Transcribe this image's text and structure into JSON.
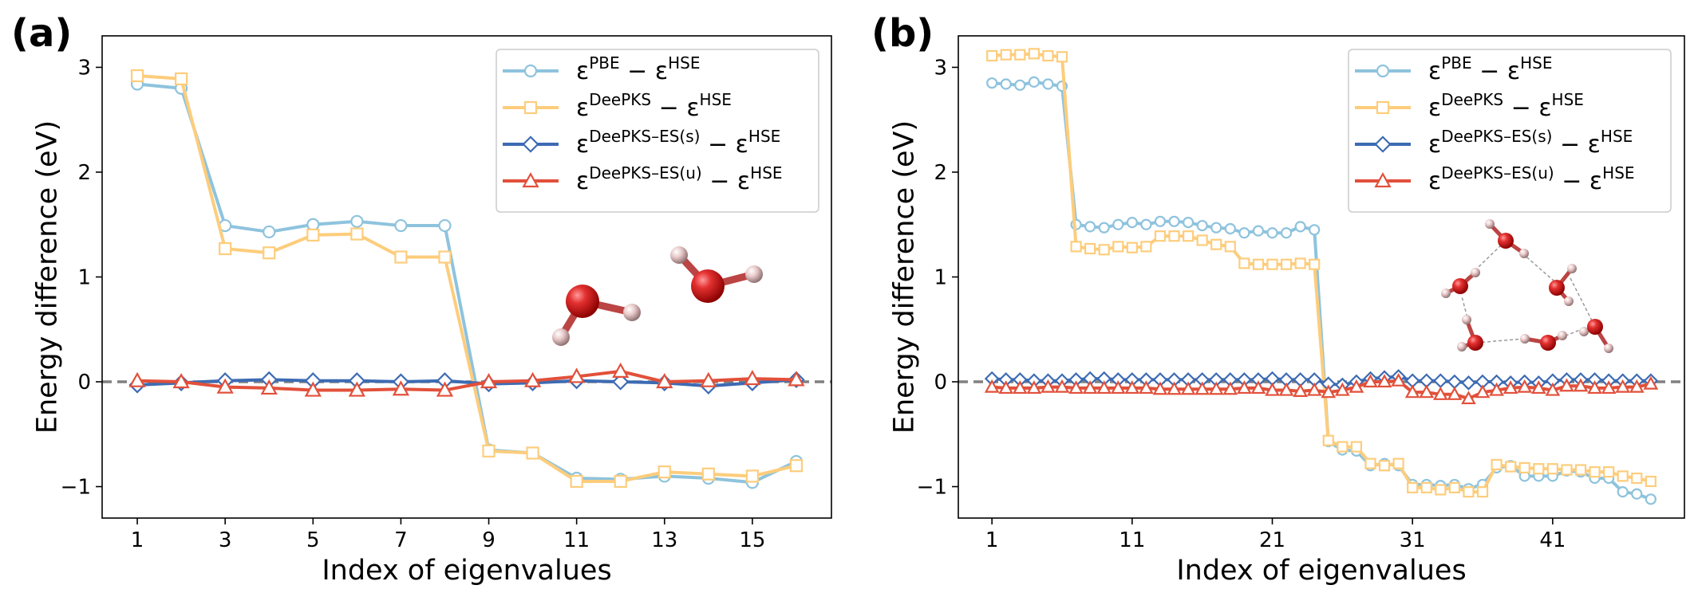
{
  "figure": {
    "panels": [
      {
        "label": "(a)"
      },
      {
        "label": "(b)"
      }
    ]
  },
  "colors": {
    "pbe": "#8ec3dd",
    "deepks": "#fdcd7c",
    "es_s": "#3d6bb3",
    "es_u": "#e2503a",
    "zero": "#808080"
  },
  "chart_data": [
    {
      "type": "line",
      "panel_label": "(a)",
      "xlabel": "Index of eigenvalues",
      "ylabel": "Energy difference (eV)",
      "xlim": [
        0.2,
        16.8
      ],
      "ylim": [
        -1.3,
        3.3
      ],
      "xticks": [
        1,
        3,
        5,
        7,
        9,
        11,
        13,
        15
      ],
      "yticks": [
        -1,
        0,
        1,
        2,
        3
      ],
      "ytick_labels": [
        "−1",
        "0",
        "1",
        "2",
        "3"
      ],
      "x": [
        1,
        2,
        3,
        4,
        5,
        6,
        7,
        8,
        9,
        10,
        11,
        12,
        13,
        14,
        15,
        16
      ],
      "series": [
        {
          "name": "PBE",
          "marker": "circle",
          "legend": {
            "base": "ε",
            "sup": "PBE",
            "rest": " − ε",
            "sup2": "HSE"
          },
          "values": [
            2.84,
            2.8,
            1.49,
            1.43,
            1.5,
            1.53,
            1.49,
            1.49,
            -0.65,
            -0.68,
            -0.92,
            -0.93,
            -0.9,
            -0.92,
            -0.96,
            -0.76
          ]
        },
        {
          "name": "DeePKS",
          "marker": "square",
          "legend": {
            "base": "ε",
            "sup": "DeePKS",
            "rest": " − ε",
            "sup2": "HSE"
          },
          "values": [
            2.92,
            2.89,
            1.27,
            1.23,
            1.4,
            1.41,
            1.19,
            1.19,
            -0.66,
            -0.68,
            -0.95,
            -0.95,
            -0.86,
            -0.88,
            -0.9,
            -0.8
          ]
        },
        {
          "name": "DeePKS-ES(s)",
          "marker": "diamond",
          "legend": {
            "base": "ε",
            "sup": "DeePKS–ES(s)",
            "rest": " − ε",
            "sup2": "HSE"
          },
          "values": [
            -0.03,
            -0.01,
            0.01,
            0.02,
            0.01,
            0.01,
            0.0,
            0.01,
            -0.02,
            -0.01,
            0.01,
            0.0,
            -0.01,
            -0.04,
            -0.01,
            0.02
          ]
        },
        {
          "name": "DeePKS-ES(u)",
          "marker": "triangle",
          "legend": {
            "base": "ε",
            "sup": "DeePKS–ES(u)",
            "rest": " − ε",
            "sup2": "HSE"
          },
          "values": [
            0.01,
            0.0,
            -0.05,
            -0.06,
            -0.08,
            -0.08,
            -0.07,
            -0.08,
            0.0,
            0.01,
            0.05,
            0.1,
            0.0,
            0.01,
            0.03,
            0.02
          ]
        }
      ]
    },
    {
      "type": "line",
      "panel_label": "(b)",
      "xlabel": "Index of eigenvalues",
      "ylabel": "Energy difference (eV)",
      "xlim": [
        -1.4,
        50.4
      ],
      "ylim": [
        -1.3,
        3.3
      ],
      "xticks": [
        1,
        11,
        21,
        31,
        41
      ],
      "yticks": [
        -1,
        0,
        1,
        2,
        3
      ],
      "ytick_labels": [
        "−1",
        "0",
        "1",
        "2",
        "3"
      ],
      "x": [
        1,
        2,
        3,
        4,
        5,
        6,
        7,
        8,
        9,
        10,
        11,
        12,
        13,
        14,
        15,
        16,
        17,
        18,
        19,
        20,
        21,
        22,
        23,
        24,
        25,
        26,
        27,
        28,
        29,
        30,
        31,
        32,
        33,
        34,
        35,
        36,
        37,
        38,
        39,
        40,
        41,
        42,
        43,
        44,
        45,
        46,
        47,
        48
      ],
      "series": [
        {
          "name": "PBE",
          "marker": "circle",
          "legend": {
            "base": "ε",
            "sup": "PBE",
            "rest": " − ε",
            "sup2": "HSE"
          },
          "values": [
            2.85,
            2.84,
            2.83,
            2.86,
            2.84,
            2.82,
            1.5,
            1.48,
            1.47,
            1.5,
            1.52,
            1.5,
            1.53,
            1.53,
            1.52,
            1.49,
            1.47,
            1.46,
            1.42,
            1.44,
            1.42,
            1.42,
            1.48,
            1.45,
            -0.57,
            -0.65,
            -0.66,
            -0.8,
            -0.78,
            -0.8,
            -0.98,
            -0.98,
            -0.99,
            -0.98,
            -1.02,
            -0.98,
            -0.82,
            -0.8,
            -0.9,
            -0.9,
            -0.9,
            -0.85,
            -0.86,
            -0.92,
            -0.92,
            -1.05,
            -1.07,
            -1.12
          ]
        },
        {
          "name": "DeePKS",
          "marker": "square",
          "legend": {
            "base": "ε",
            "sup": "DeePKS",
            "rest": " − ε",
            "sup2": "HSE"
          },
          "values": [
            3.11,
            3.12,
            3.12,
            3.13,
            3.11,
            3.1,
            1.29,
            1.27,
            1.26,
            1.29,
            1.28,
            1.29,
            1.39,
            1.39,
            1.39,
            1.35,
            1.31,
            1.29,
            1.13,
            1.12,
            1.12,
            1.12,
            1.13,
            1.12,
            -0.56,
            -0.62,
            -0.62,
            -0.78,
            -0.8,
            -0.78,
            -1.01,
            -1.01,
            -1.03,
            -1.01,
            -1.05,
            -1.05,
            -0.79,
            -0.81,
            -0.82,
            -0.83,
            -0.83,
            -0.84,
            -0.84,
            -0.86,
            -0.86,
            -0.9,
            -0.92,
            -0.95
          ]
        },
        {
          "name": "DeePKS-ES(s)",
          "marker": "diamond",
          "legend": {
            "base": "ε",
            "sup": "DeePKS–ES(s)",
            "rest": " − ε",
            "sup2": "HSE"
          },
          "values": [
            0.03,
            0.02,
            0.02,
            0.01,
            0.01,
            0.01,
            0.02,
            0.03,
            0.03,
            0.02,
            0.02,
            0.02,
            0.02,
            0.02,
            0.02,
            0.02,
            0.02,
            0.02,
            0.02,
            0.02,
            0.03,
            0.02,
            0.02,
            0.02,
            -0.02,
            -0.03,
            0.0,
            0.03,
            0.04,
            0.05,
            0.01,
            0.01,
            0.01,
            0.0,
            -0.01,
            0.0,
            0.0,
            -0.01,
            0.0,
            -0.01,
            0.01,
            0.02,
            0.02,
            0.02,
            0.01,
            0.01,
            0.01,
            0.01
          ]
        },
        {
          "name": "DeePKS-ES(u)",
          "marker": "triangle",
          "legend": {
            "base": "ε",
            "sup": "DeePKS–ES(u)",
            "rest": " − ε",
            "sup2": "HSE"
          },
          "values": [
            -0.05,
            -0.06,
            -0.06,
            -0.06,
            -0.05,
            -0.05,
            -0.06,
            -0.06,
            -0.06,
            -0.06,
            -0.06,
            -0.06,
            -0.07,
            -0.07,
            -0.07,
            -0.07,
            -0.07,
            -0.07,
            -0.06,
            -0.06,
            -0.08,
            -0.08,
            -0.09,
            -0.08,
            -0.1,
            -0.08,
            -0.05,
            0.0,
            0.0,
            0.01,
            -0.1,
            -0.1,
            -0.12,
            -0.12,
            -0.16,
            -0.1,
            -0.08,
            -0.06,
            -0.05,
            -0.06,
            -0.08,
            -0.04,
            -0.04,
            -0.06,
            -0.06,
            -0.05,
            -0.05,
            -0.02
          ]
        }
      ]
    }
  ]
}
